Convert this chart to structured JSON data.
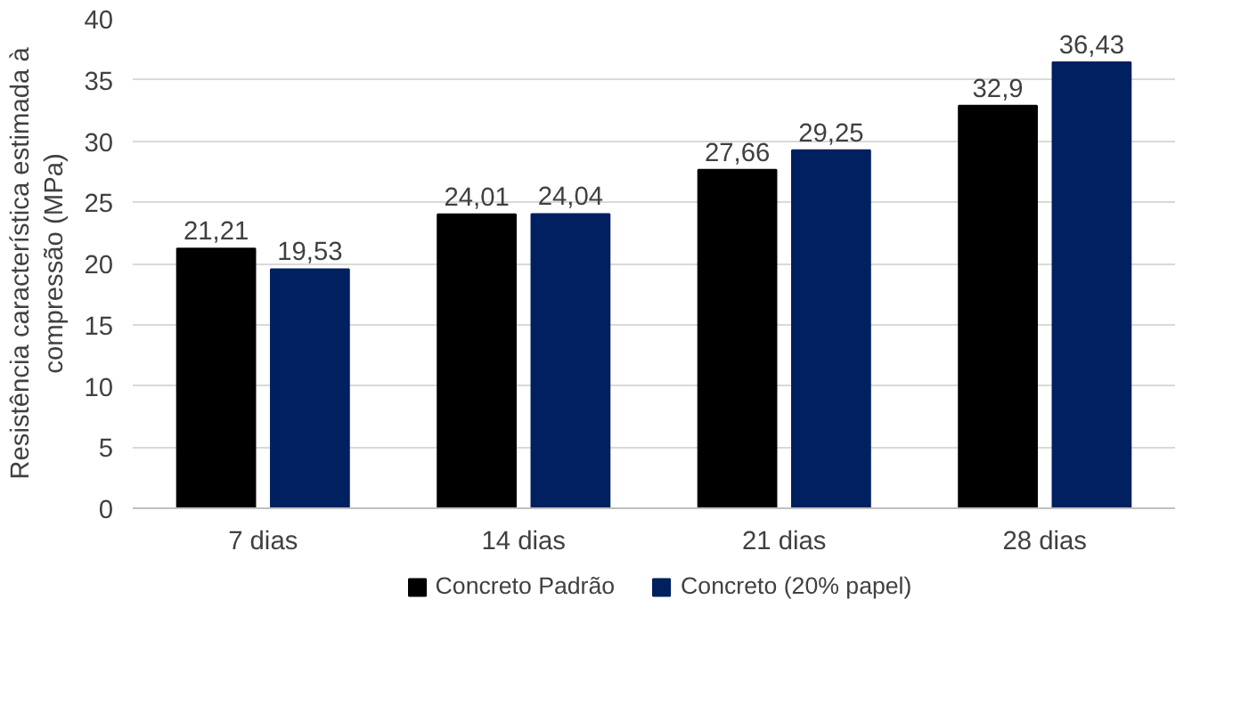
{
  "chart_data": {
    "type": "bar",
    "ylabel": "Resistência característica estimada à\ncompressão (MPa)",
    "categories": [
      "7 dias",
      "14 dias",
      "21 dias",
      "28 dias"
    ],
    "series": [
      {
        "name": "Concreto Padrão",
        "color": "#000000",
        "values": [
          21.21,
          24.01,
          27.66,
          32.9
        ],
        "value_labels": [
          "21,21",
          "24,01",
          "27,66",
          "32,9"
        ]
      },
      {
        "name": "Concreto (20% papel)",
        "color": "#002060",
        "values": [
          19.53,
          24.04,
          29.25,
          36.43
        ],
        "value_labels": [
          "19,53",
          "24,04",
          "29,25",
          "36,43"
        ]
      }
    ],
    "ylim": [
      0,
      40
    ],
    "yticks": [
      0,
      5,
      10,
      15,
      20,
      25,
      30,
      35,
      40
    ],
    "grid": "y",
    "legend": "bottom"
  }
}
